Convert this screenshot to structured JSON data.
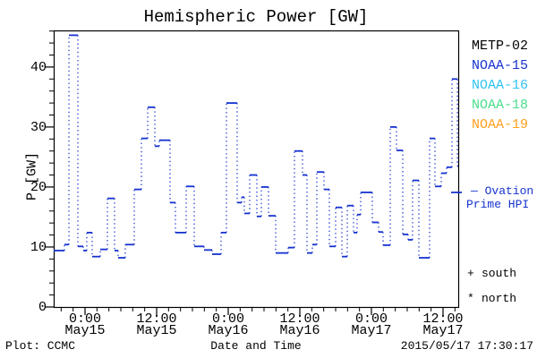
{
  "footer": {
    "credit": "Plot: CCMC",
    "timestamp": "2015/05/17 17:30:17"
  },
  "legend": {
    "satellites": [
      {
        "label": "METP-02",
        "color": "#000000"
      },
      {
        "label": "NOAA-15",
        "color": "#1633cf"
      },
      {
        "label": "NOAA-16",
        "color": "#2fc3f2"
      },
      {
        "label": "NOAA-18",
        "color": "#4ade8c"
      },
      {
        "label": "NOAA-19",
        "color": "#ff9f1f"
      }
    ],
    "ovation": {
      "line1": "— Ovation",
      "line2": "Prime HPI",
      "color": "#1633cf"
    },
    "hemisphere": [
      {
        "symbol": "+",
        "label": "south"
      },
      {
        "symbol": "*",
        "label": "north"
      }
    ]
  },
  "chart_data": {
    "type": "line",
    "line_style": "histogram-step with dotted vertical connectors",
    "title": "Hemispheric Power [GW]",
    "xlabel": "Date and Time",
    "ylabel": "P [GW]",
    "ylim": [
      0,
      46.1
    ],
    "yticks": [
      0,
      10,
      20,
      30,
      40
    ],
    "y_minor_step": 2,
    "x_range_hours": [
      -5.25,
      62.55
    ],
    "x_minor_step_hours": 2,
    "grid": false,
    "xticks": [
      {
        "hour": 0,
        "time": "0:00",
        "date": "May15"
      },
      {
        "hour": 12,
        "time": "12:00",
        "date": "May15"
      },
      {
        "hour": 24,
        "time": "0:00",
        "date": "May16"
      },
      {
        "hour": 36,
        "time": "12:00",
        "date": "May16"
      },
      {
        "hour": 48,
        "time": "0:00",
        "date": "May17"
      },
      {
        "hour": 60,
        "time": "12:00",
        "date": "May17"
      }
    ],
    "series": [
      {
        "name": "NOAA-15",
        "color": "#1633cf",
        "units": "GW",
        "x_units": "hours from 2015/05/15 00:00 UT",
        "x_end": 62.55,
        "steps": [
          [
            -5.25,
            9.4
          ],
          [
            -3.45,
            10.4
          ],
          [
            -2.7,
            45.3
          ],
          [
            -1.2,
            10.1
          ],
          [
            -0.3,
            9.4
          ],
          [
            0.3,
            12.4
          ],
          [
            1.2,
            8.4
          ],
          [
            2.55,
            9.6
          ],
          [
            3.75,
            18.1
          ],
          [
            4.95,
            9.4
          ],
          [
            5.55,
            8.2
          ],
          [
            6.75,
            10.4
          ],
          [
            8.25,
            19.6
          ],
          [
            9.45,
            28.1
          ],
          [
            10.5,
            33.3
          ],
          [
            11.7,
            26.8
          ],
          [
            12.45,
            27.8
          ],
          [
            14.25,
            17.4
          ],
          [
            15.15,
            12.4
          ],
          [
            16.95,
            20.1
          ],
          [
            18.3,
            10.1
          ],
          [
            19.95,
            9.5
          ],
          [
            21.3,
            8.8
          ],
          [
            22.8,
            12.4
          ],
          [
            23.7,
            34.0
          ],
          [
            25.5,
            17.4
          ],
          [
            26.25,
            18.3
          ],
          [
            26.7,
            15.6
          ],
          [
            27.6,
            22.0
          ],
          [
            28.8,
            15.1
          ],
          [
            29.55,
            20.0
          ],
          [
            30.75,
            15.2
          ],
          [
            31.95,
            9.0
          ],
          [
            34.05,
            9.9
          ],
          [
            35.1,
            26.0
          ],
          [
            36.45,
            22.0
          ],
          [
            37.2,
            9.0
          ],
          [
            38.1,
            10.4
          ],
          [
            38.85,
            22.5
          ],
          [
            40.05,
            19.6
          ],
          [
            40.95,
            10.1
          ],
          [
            42.0,
            16.6
          ],
          [
            43.05,
            8.4
          ],
          [
            43.95,
            16.9
          ],
          [
            45.0,
            12.4
          ],
          [
            45.6,
            15.4
          ],
          [
            46.2,
            19.1
          ],
          [
            48.15,
            14.1
          ],
          [
            49.2,
            12.5
          ],
          [
            49.95,
            10.3
          ],
          [
            51.15,
            30.0
          ],
          [
            52.2,
            26.1
          ],
          [
            53.25,
            12.1
          ],
          [
            54.15,
            11.2
          ],
          [
            54.9,
            21.1
          ],
          [
            55.95,
            8.2
          ],
          [
            57.75,
            28.1
          ],
          [
            58.65,
            20.1
          ],
          [
            59.7,
            22.3
          ],
          [
            60.6,
            23.3
          ],
          [
            61.5,
            38.0
          ],
          [
            62.4,
            23.5
          ]
        ]
      }
    ]
  }
}
